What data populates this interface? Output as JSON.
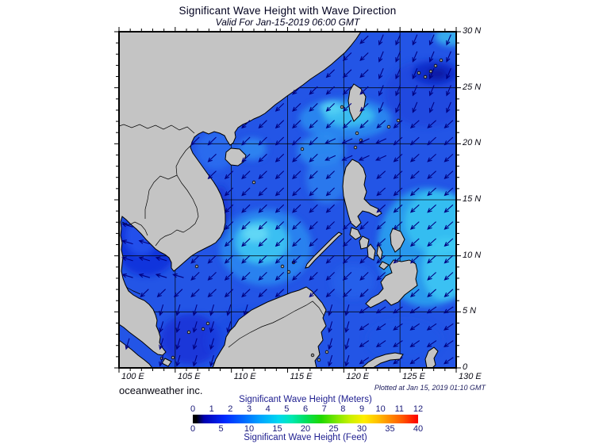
{
  "header": {
    "title": "Significant Wave Height with Wave Direction",
    "subtitle": "Valid For Jan-15-2019 06:00 GMT"
  },
  "map": {
    "lon_labels": [
      "100 E",
      "105 E",
      "110 E",
      "115 E",
      "120 E",
      "125 E",
      "130 E"
    ],
    "lat_labels": [
      "30 N",
      "25 N",
      "20 N",
      "15 N",
      "10 N",
      "5 N",
      "0"
    ],
    "lon_range_deg": [
      100,
      130
    ],
    "lat_range_deg": [
      0,
      30
    ],
    "grid_interval_deg": 5,
    "tick_interval_deg": 1
  },
  "credits": {
    "left": "oceanweather inc.",
    "right": "Plotted at Jan 15, 2019 01:10 GMT"
  },
  "legend": {
    "top_label": "Significant Wave Height (Meters)",
    "bottom_label": "Significant Wave Height (Feet)",
    "meters_ticks": [
      "0",
      "1",
      "2",
      "3",
      "4",
      "5",
      "6",
      "7",
      "8",
      "9",
      "10",
      "11",
      "12"
    ],
    "feet_ticks": [
      "0",
      "5",
      "10",
      "15",
      "20",
      "25",
      "30",
      "35",
      "40"
    ],
    "gradient_stops": [
      [
        0,
        "#000000"
      ],
      [
        1.5,
        "#000000"
      ],
      [
        5,
        "#0000b0"
      ],
      [
        14,
        "#0028ff"
      ],
      [
        22,
        "#0064ff"
      ],
      [
        30,
        "#00a4ff"
      ],
      [
        38,
        "#00d8f0"
      ],
      [
        44,
        "#00e8b0"
      ],
      [
        50,
        "#00e060"
      ],
      [
        57,
        "#20d800"
      ],
      [
        64,
        "#80e800"
      ],
      [
        70,
        "#ccf000"
      ],
      [
        76,
        "#ffee00"
      ],
      [
        82,
        "#ffc000"
      ],
      [
        87,
        "#ff9000"
      ],
      [
        93,
        "#ff5800"
      ],
      [
        98,
        "#ff1800"
      ],
      [
        100,
        "#ff0000"
      ]
    ]
  },
  "colors": {
    "land": "#c4c4c4",
    "coastline": "#000000",
    "ocean_base": "#2355e6",
    "arrow": "#000080",
    "grid": "#000000"
  }
}
